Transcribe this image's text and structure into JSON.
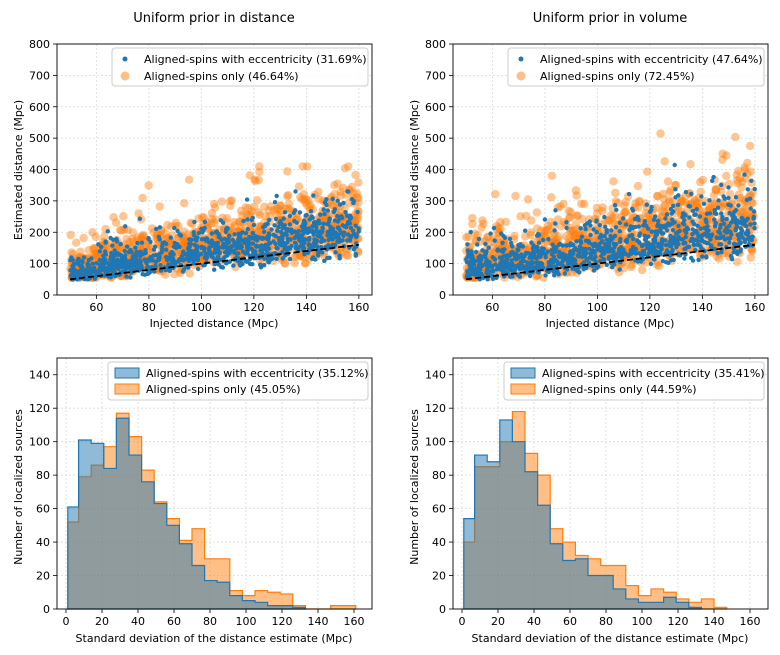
{
  "colors": {
    "ecc": "#1f77b4",
    "spin": "#ff7f0e",
    "spin_fill": "#fdbf87",
    "ecc_fill": "#8fb7d9",
    "overlap_fill": "#8b9f9a",
    "grid": "#d9d9d9"
  },
  "chart_data": [
    {
      "type": "scatter",
      "title": "Uniform prior in distance",
      "xlabel": "Injected distance (Mpc)",
      "ylabel": "Estimated distance (Mpc)",
      "xlim": [
        45,
        165
      ],
      "ylim": [
        0,
        800
      ],
      "xticks": [
        60,
        80,
        100,
        120,
        140,
        160
      ],
      "yticks": [
        0,
        100,
        200,
        300,
        400,
        500,
        600,
        700,
        800
      ],
      "grid": true,
      "legend_position": "top-right",
      "reference_line": {
        "style": "dashed",
        "x": [
          50,
          160
        ],
        "y": [
          50,
          160
        ]
      },
      "series": [
        {
          "name": "Aligned-spins with eccentricity (31.69%)",
          "marker": "small-dot",
          "count": 1000,
          "x_range": [
            50,
            160
          ],
          "trend": "y≈x with upward scatter",
          "max_y": 330
        },
        {
          "name": "Aligned-spins only (46.64%)",
          "marker": "large-dot",
          "count": 1000,
          "x_range": [
            50,
            160
          ],
          "trend": "y≈x with larger upward scatter",
          "max_y": 410
        }
      ]
    },
    {
      "type": "scatter",
      "title": "Uniform prior in volume",
      "xlabel": "Injected distance (Mpc)",
      "ylabel": "Estimated distance (Mpc)",
      "xlim": [
        45,
        165
      ],
      "ylim": [
        0,
        800
      ],
      "xticks": [
        60,
        80,
        100,
        120,
        140,
        160
      ],
      "yticks": [
        0,
        100,
        200,
        300,
        400,
        500,
        600,
        700,
        800
      ],
      "grid": true,
      "legend_position": "top-right",
      "reference_line": {
        "style": "dashed",
        "x": [
          50,
          160
        ],
        "y": [
          50,
          160
        ]
      },
      "series": [
        {
          "name": "Aligned-spins with eccentricity (47.64%)",
          "marker": "small-dot",
          "count": 1000,
          "x_range": [
            50,
            160
          ],
          "trend": "y≈x with upward scatter",
          "max_y": 470
        },
        {
          "name": "Aligned-spins only (72.45%)",
          "marker": "large-dot",
          "count": 1000,
          "x_range": [
            50,
            160
          ],
          "trend": "y≈x with larger upward scatter",
          "max_y": 525
        }
      ]
    },
    {
      "type": "histogram",
      "title": "",
      "xlabel": "Standard deviation of the distance estimate (Mpc)",
      "ylabel": "Number of localized sources",
      "xlim": [
        -5,
        170
      ],
      "ylim": [
        0,
        150
      ],
      "xticks": [
        0,
        20,
        40,
        60,
        80,
        100,
        120,
        140,
        160
      ],
      "yticks": [
        0,
        20,
        40,
        60,
        80,
        100,
        120,
        140
      ],
      "grid": true,
      "legend_position": "top-right",
      "series": [
        {
          "name": "Aligned-spins with eccentricity (35.12%)",
          "edges": [
            1,
            7,
            14,
            21,
            28,
            35,
            42,
            49,
            56,
            63,
            70,
            77,
            84,
            91,
            98,
            105,
            112,
            119,
            126,
            133
          ],
          "counts": [
            61,
            101,
            99,
            84,
            114,
            92,
            76,
            63,
            50,
            39,
            26,
            17,
            16,
            8,
            5,
            4,
            2,
            2,
            1
          ]
        },
        {
          "name": "Aligned-spins only (45.05%)",
          "edges": [
            1,
            7,
            14,
            21,
            28,
            35,
            42,
            49,
            56,
            63,
            70,
            77,
            84,
            91,
            98,
            105,
            112,
            119,
            126,
            133,
            140,
            147,
            154,
            161
          ],
          "counts": [
            52,
            79,
            86,
            97,
            117,
            103,
            83,
            64,
            54,
            41,
            48,
            30,
            30,
            11,
            8,
            11,
            10,
            9,
            2,
            0,
            0,
            2,
            2
          ]
        }
      ]
    },
    {
      "type": "histogram",
      "title": "",
      "xlabel": "Standard deviation of the distance estimate (Mpc)",
      "ylabel": "Number of localized sources",
      "xlim": [
        -5,
        170
      ],
      "ylim": [
        0,
        150
      ],
      "xticks": [
        0,
        20,
        40,
        60,
        80,
        100,
        120,
        140,
        160
      ],
      "yticks": [
        0,
        20,
        40,
        60,
        80,
        100,
        120,
        140
      ],
      "grid": true,
      "legend_position": "top-right",
      "series": [
        {
          "name": "Aligned-spins with eccentricity (35.41%)",
          "edges": [
            1,
            7,
            14,
            21,
            28,
            35,
            42,
            49,
            56,
            63,
            70,
            77,
            84,
            91,
            98,
            105,
            112,
            119,
            126,
            133
          ],
          "counts": [
            54,
            92,
            88,
            113,
            100,
            82,
            62,
            39,
            29,
            30,
            20,
            20,
            12,
            6,
            4,
            4,
            7,
            4,
            1
          ]
        },
        {
          "name": "Aligned-spins only (44.59%)",
          "edges": [
            1,
            7,
            14,
            21,
            28,
            35,
            42,
            49,
            56,
            63,
            70,
            77,
            84,
            91,
            98,
            105,
            112,
            119,
            126,
            133,
            140,
            147
          ],
          "counts": [
            40,
            85,
            85,
            100,
            118,
            93,
            80,
            48,
            40,
            32,
            30,
            26,
            26,
            14,
            8,
            12,
            10,
            6,
            4,
            6,
            1
          ]
        }
      ]
    }
  ]
}
